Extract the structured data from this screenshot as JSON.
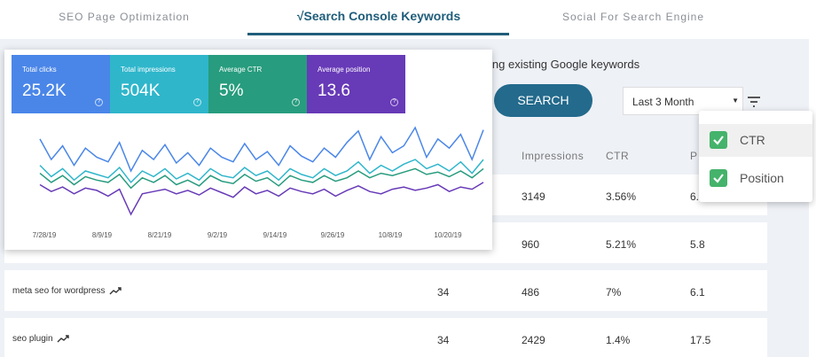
{
  "tabs": [
    {
      "label": "SEO Page Optimization"
    },
    {
      "label": "√Search Console Keywords",
      "active": true
    },
    {
      "label": "Social For Search Engine"
    }
  ],
  "intro_text": "ing existing Google keywords",
  "search_button": "SEARCH",
  "range_select": "Last 3 Month",
  "table": {
    "headers": [
      "Impressions",
      "CTR",
      "P"
    ],
    "rows": [
      {
        "impressions": 3149,
        "ctr": "3.56%",
        "position": "6."
      },
      {
        "impressions": 960,
        "ctr": "5.21%",
        "position": "5.8"
      },
      {
        "keyword": "meta seo for wordpress",
        "clicks": 34,
        "impressions": 486,
        "ctr": "7%",
        "position": "6.1"
      },
      {
        "keyword": "seo plugin",
        "clicks": 34,
        "impressions": 2429,
        "ctr": "1.4%",
        "position": "17.5"
      }
    ]
  },
  "column_menu": {
    "items": [
      {
        "label": "CTR",
        "checked": true
      },
      {
        "label": "Position",
        "checked": true
      }
    ]
  },
  "chart_data": {
    "type": "line",
    "xtick_labels": [
      "7/28/19",
      "8/9/19",
      "8/21/19",
      "9/2/19",
      "9/14/19",
      "9/26/19",
      "10/8/19",
      "10/20/19"
    ],
    "series": [
      {
        "name": "Total clicks",
        "summary": "25.2K",
        "color": "#4a86e8",
        "values": [
          78,
          60,
          72,
          55,
          70,
          62,
          58,
          75,
          50,
          68,
          60,
          73,
          57,
          66,
          55,
          70,
          62,
          58,
          74,
          60,
          67,
          55,
          72,
          63,
          58,
          70,
          62,
          75,
          85,
          60,
          80,
          66,
          72,
          88,
          62,
          78,
          70,
          82,
          60,
          86
        ]
      },
      {
        "name": "Total impressions",
        "summary": "504K",
        "color": "#2fb6cb",
        "values": [
          55,
          45,
          52,
          42,
          50,
          47,
          44,
          53,
          40,
          50,
          45,
          52,
          43,
          48,
          42,
          52,
          46,
          44,
          53,
          46,
          50,
          42,
          52,
          47,
          44,
          52,
          46,
          50,
          58,
          48,
          55,
          50,
          56,
          60,
          52,
          56,
          50,
          58,
          48,
          60
        ]
      },
      {
        "name": "Average CTR",
        "summary": "5%",
        "color": "#279c7e",
        "values": [
          48,
          40,
          46,
          38,
          45,
          42,
          40,
          47,
          35,
          44,
          40,
          46,
          38,
          42,
          37,
          46,
          41,
          39,
          47,
          41,
          44,
          37,
          46,
          42,
          40,
          46,
          41,
          44,
          50,
          44,
          48,
          46,
          49,
          52,
          47,
          49,
          45,
          50,
          44,
          52
        ]
      },
      {
        "name": "Average position",
        "summary": "13.6",
        "color": "#673ab7",
        "values": [
          38,
          32,
          36,
          30,
          35,
          33,
          28,
          34,
          12,
          30,
          32,
          34,
          30,
          33,
          29,
          35,
          31,
          27,
          36,
          30,
          33,
          28,
          35,
          32,
          30,
          34,
          28,
          33,
          37,
          32,
          30,
          34,
          36,
          33,
          35,
          38,
          32,
          36,
          34,
          40
        ]
      }
    ]
  }
}
